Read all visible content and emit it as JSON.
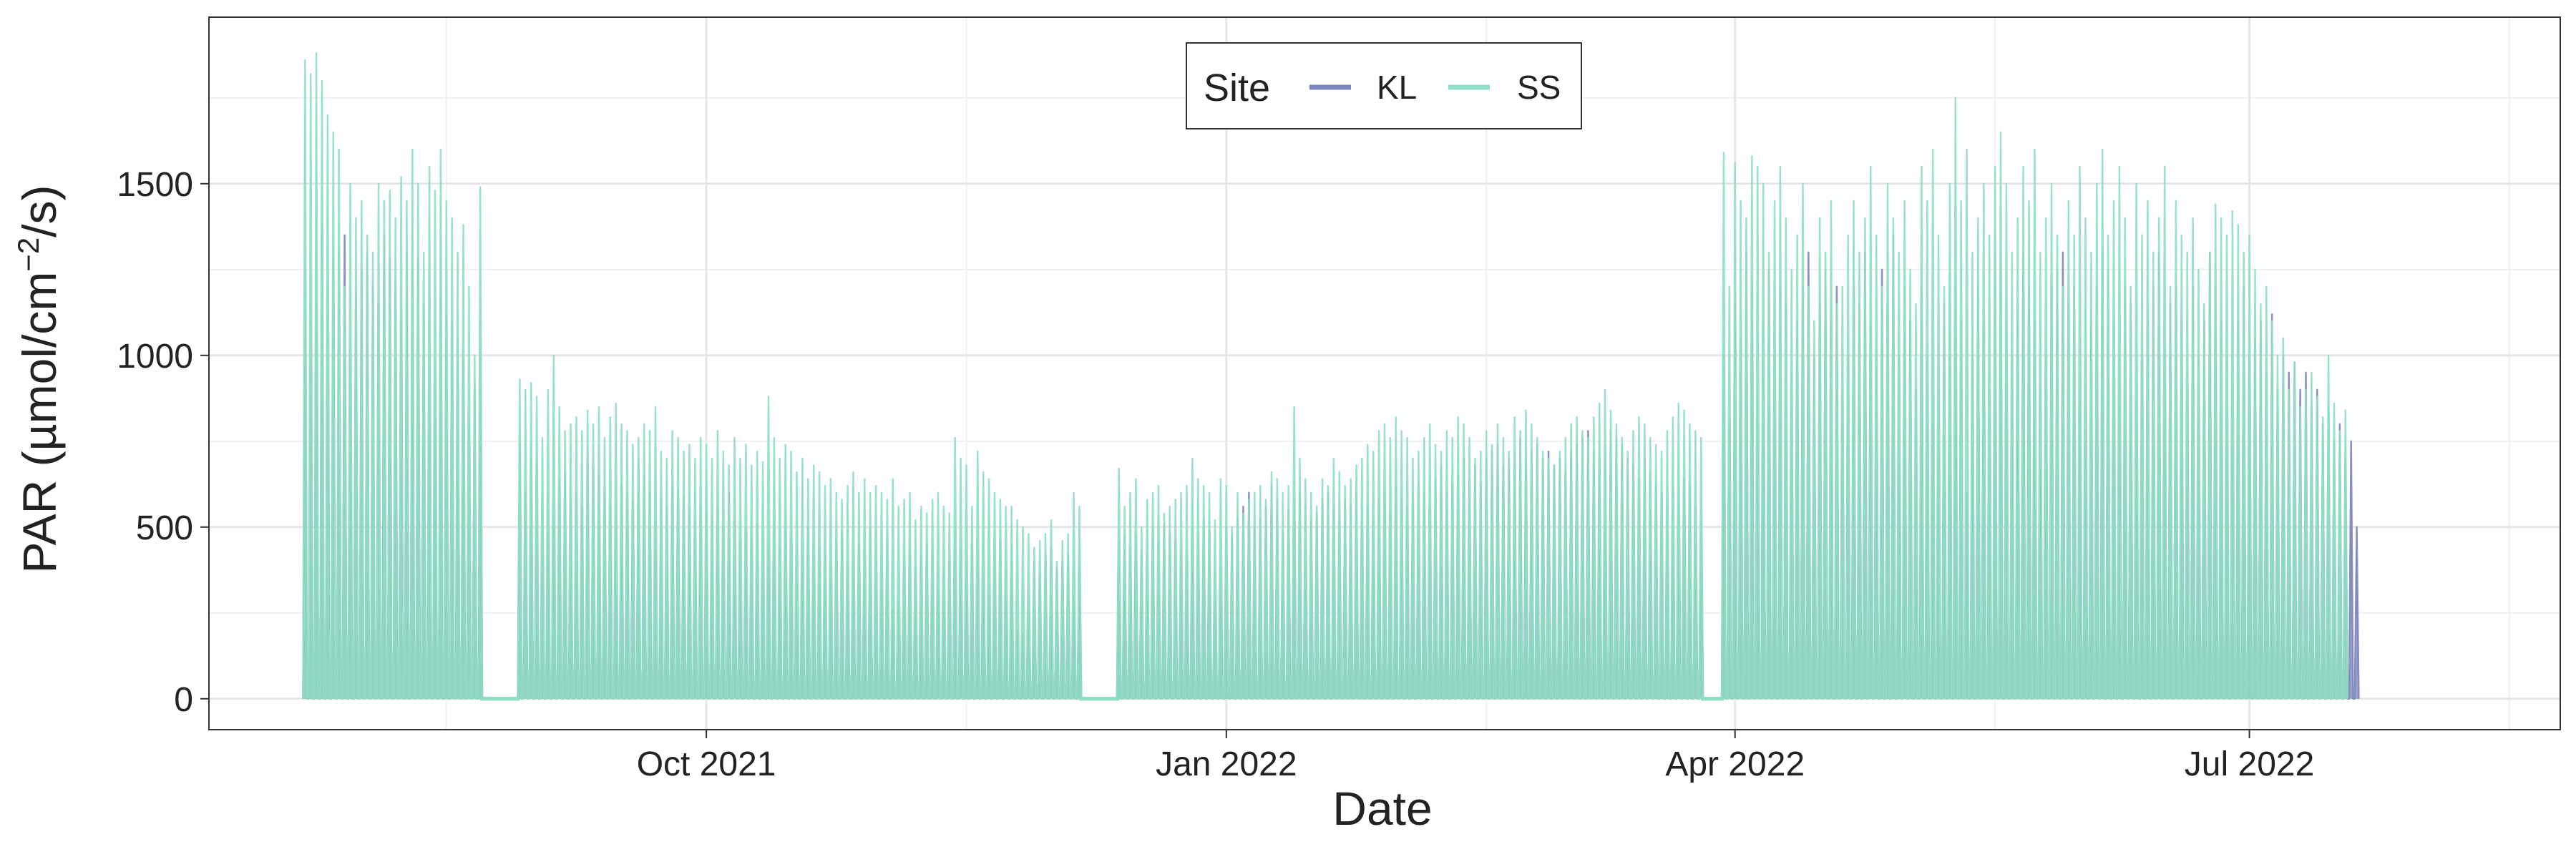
{
  "chart_data": {
    "type": "line",
    "title": "",
    "xlabel": "Date",
    "ylabel": "PAR (µmol/cm⁻²/s)",
    "ylabel_parts": {
      "pre": "PAR (µmol/cm",
      "sup": "−2",
      "post": "/s)"
    },
    "x_ticks": [
      {
        "date": "2021-10-01",
        "label": "Oct 2021"
      },
      {
        "date": "2022-01-01",
        "label": "Jan 2022"
      },
      {
        "date": "2022-04-01",
        "label": "Apr 2022"
      },
      {
        "date": "2022-07-01",
        "label": "Jul 2022"
      }
    ],
    "xlim": [
      "2021-07-05",
      "2022-08-25"
    ],
    "y_ticks": [
      0,
      500,
      1000,
      1500
    ],
    "ylim": [
      -90,
      1985
    ],
    "grid": true,
    "legend": {
      "title": "Site",
      "position": "top-center",
      "entries": [
        {
          "name": "KL",
          "color": "#7b86bd"
        },
        {
          "name": "SS",
          "color": "#8fdfc3"
        }
      ]
    },
    "series": [
      {
        "name": "KL",
        "color": "#7b86bd",
        "segments": [
          {
            "start": "2021-07-22",
            "values": [
              1250,
              1100,
              1300,
              1380,
              1200,
              1280,
              1320,
              1350,
              1000,
              1180,
              1250,
              1300,
              1200,
              1150,
              1350,
              1280,
              1220,
              1100,
              1300,
              1250,
              1280,
              1150,
              1000,
              950,
              1180,
              1120,
              1100,
              1050,
              1000,
              800,
              920,
              1100
            ]
          },
          {
            "start": "2021-08-29",
            "values": [
              740,
              620,
              700,
              680,
              550,
              600,
              520,
              640,
              660,
              580,
              600,
              560,
              700,
              680,
              650,
              600,
              560,
              520,
              620,
              600,
              580,
              700,
              650,
              600,
              520,
              580,
              560,
              620,
              610,
              590,
              560,
              520,
              560,
              540,
              520,
              560,
              500,
              600,
              520,
              460,
              500,
              470,
              510,
              480,
              450,
              520,
              440,
              500,
              470,
              430,
              460,
              500,
              420,
              440,
              420,
              400,
              460,
              480,
              380,
              400,
              450,
              420,
              500,
              430,
              380,
              470,
              260,
              280,
              400,
              420,
              380,
              420,
              450,
              430,
              380,
              360,
              400,
              480,
              440,
              400,
              450,
              420,
              400,
              300,
              420,
              460,
              380,
              400,
              200,
              190,
              300,
              400,
              360,
              420,
              440,
              380,
              400,
              420,
              300,
              400
            ]
          },
          {
            "start": "2021-12-13",
            "values": [
              460,
              470,
              440,
              480,
              430,
              420,
              500,
              460,
              510,
              480,
              460,
              420,
              400,
              500,
              480,
              520,
              490,
              380,
              380,
              500,
              480,
              520,
              560,
              600,
              500,
              520,
              560,
              620,
              580,
              480,
              550,
              520,
              600,
              560,
              520,
              540,
              580,
              600,
              560,
              520,
              580,
              560,
              600,
              500,
              560,
              520,
              580,
              600,
              540,
              620,
              580,
              560,
              600,
              620,
              600,
              560,
              640,
              680,
              600,
              620,
              650,
              700,
              640,
              680,
              620,
              700,
              720,
              740,
              680,
              700,
              720,
              760,
              700,
              720,
              740,
              700,
              720,
              680,
              700,
              660,
              720,
              740,
              760,
              780,
              720,
              700,
              720,
              780,
              760,
              740,
              700,
              680,
              640,
              700,
              660,
              620,
              600,
              560,
              600,
              580,
              640,
              620,
              560,
              520
            ]
          },
          {
            "start": "2022-03-30",
            "values": [
              1000,
              800,
              1150,
              1050,
              1300,
              1200,
              900,
              1100,
              1250,
              1000,
              1200,
              1150,
              950,
              1100,
              1200,
              1300,
              1000,
              1150,
              1250,
              1100,
              1200,
              900,
              1000,
              1200,
              1150,
              1300,
              1100,
              1000,
              1250,
              1150,
              1350,
              1000,
              1200,
              1100,
              900,
              1200,
              1000,
              800,
              900,
              1150,
              1000,
              1200,
              1100,
              600,
              1000,
              1200,
              1100,
              900,
              1300,
              1250,
              1100,
              1000,
              1150,
              1300,
              1200,
              1100,
              900,
              1000,
              1200,
              1250,
              1300,
              1150,
              1200,
              900,
              1000,
              1100,
              1200,
              1300,
              1250,
              1100,
              1000,
              1200,
              1150,
              900,
              1000,
              1100,
              1200,
              1300,
              1000,
              1150,
              1200,
              1100,
              900,
              1200,
              1000,
              1100,
              1300,
              1200,
              1100,
              1000,
              900,
              1100,
              1200,
              1000,
              1050,
              1100,
              950,
              1120,
              900,
              1000,
              950,
              980,
              900,
              950,
              850,
              900,
              800,
              850,
              750,
              800,
              700,
              750,
              500
            ]
          }
        ]
      },
      {
        "name": "SS",
        "color": "#8fdfc3",
        "segments": [
          {
            "start": "2021-07-22",
            "values": [
              1860,
              1820,
              1880,
              1800,
              1700,
              1650,
              1600,
              1200,
              1500,
              1400,
              1450,
              1350,
              1300,
              1500,
              1450,
              1480,
              1400,
              1520,
              1450,
              1600,
              1500,
              1300,
              1550,
              1480,
              1600,
              1450,
              1400,
              1300,
              1380,
              1200,
              1000,
              1490
            ]
          },
          {
            "start": "2021-08-29",
            "values": [
              930,
              900,
              920,
              880,
              760,
              900,
              1000,
              850,
              780,
              800,
              820,
              780,
              840,
              800,
              850,
              760,
              820,
              860,
              800,
              780,
              740,
              760,
              800,
              780,
              850,
              720,
              700,
              780,
              760,
              720,
              740,
              700,
              760,
              740,
              700,
              780,
              720,
              680,
              760,
              700,
              740,
              680,
              720,
              690,
              880,
              760,
              700,
              740,
              720,
              660,
              700,
              640,
              680,
              660,
              620,
              640,
              600,
              580,
              620,
              660,
              600,
              640,
              600,
              620,
              600,
              580,
              640,
              560,
              580,
              600,
              520,
              560,
              540,
              580,
              600,
              560,
              540,
              760,
              700,
              680,
              560,
              720,
              660,
              640,
              600,
              580,
              560,
              560,
              520,
              500,
              480,
              440,
              460,
              480,
              520,
              400,
              460,
              480,
              600,
              560
            ]
          },
          {
            "start": "2021-12-13",
            "values": [
              670,
              560,
              600,
              640,
              500,
              580,
              600,
              620,
              540,
              560,
              580,
              600,
              620,
              700,
              640,
              620,
              600,
              520,
              640,
              620,
              500,
              600,
              540,
              580,
              600,
              620,
              580,
              660,
              640,
              600,
              620,
              850,
              700,
              640,
              600,
              560,
              640,
              620,
              700,
              660,
              620,
              640,
              680,
              700,
              740,
              720,
              780,
              800,
              760,
              820,
              780,
              760,
              700,
              720,
              760,
              800,
              740,
              720,
              780,
              760,
              820,
              800,
              760,
              700,
              720,
              780,
              740,
              800,
              760,
              720,
              820,
              780,
              840,
              800,
              760,
              720,
              700,
              680,
              720,
              760,
              800,
              820,
              780,
              760,
              820,
              860,
              900,
              840,
              800,
              760,
              720,
              780,
              820,
              800,
              760,
              740,
              720,
              780,
              820,
              860,
              840,
              800,
              780,
              760
            ]
          },
          {
            "start": "2022-03-30",
            "values": [
              1590,
              1200,
              1560,
              1450,
              1400,
              1580,
              1550,
              1500,
              1300,
              1450,
              1550,
              1400,
              1250,
              1350,
              1500,
              1200,
              1100,
              1400,
              1300,
              1450,
              1150,
              1200,
              1350,
              1450,
              1300,
              1400,
              1550,
              1350,
              1200,
              1500,
              1400,
              1300,
              1450,
              1250,
              1150,
              1550,
              1450,
              1600,
              1350,
              1200,
              1500,
              1750,
              1450,
              1600,
              1300,
              1400,
              1500,
              1350,
              1550,
              1650,
              1500,
              1300,
              1400,
              1550,
              1450,
              1600,
              1300,
              1400,
              1500,
              1350,
              1200,
              1450,
              1350,
              1550,
              1400,
              1300,
              1500,
              1600,
              1350,
              1450,
              1550,
              1400,
              1200,
              1500,
              1350,
              1450,
              1300,
              1400,
              1550,
              1200,
              1450,
              1350,
              1300,
              1400,
              1250,
              1150,
              1300,
              1440,
              1400,
              1350,
              1420,
              1380,
              1300,
              1350,
              1250,
              1150,
              1200,
              1100,
              1000,
              1050,
              900,
              980,
              850,
              900,
              950,
              880,
              820,
              1000,
              860,
              780,
              840
            ]
          }
        ]
      }
    ]
  }
}
